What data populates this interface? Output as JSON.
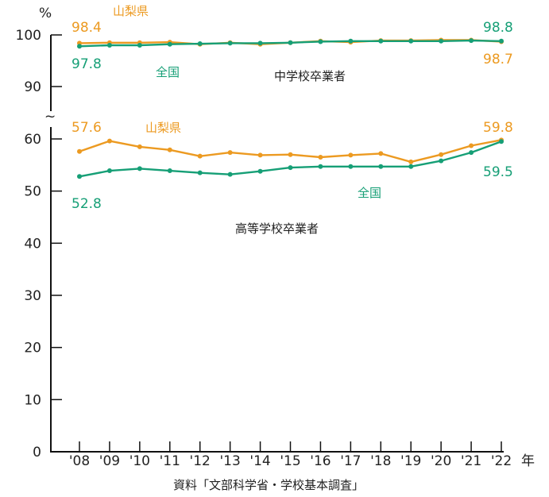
{
  "chart_data": {
    "type": "line",
    "unit_label": "%",
    "x_unit": "年",
    "source": "資料「文部科学省・学校基本調査」",
    "x_categories": [
      "'08",
      "'09",
      "'10",
      "'11",
      "'12",
      "'13",
      "'14",
      "'15",
      "'16",
      "'17",
      "'18",
      "'19",
      "'20",
      "'21",
      "'22"
    ],
    "y_ticks_lower": [
      0,
      10,
      20,
      30,
      40,
      50,
      60
    ],
    "y_ticks_upper": [
      90,
      100
    ],
    "axis_break": "~",
    "colors": {
      "yamanashi": "#ec9a21",
      "national": "#169f76",
      "axis": "#111111"
    },
    "panels": {
      "junior_high": {
        "group_label": "中学校卒業者",
        "series": [
          {
            "name": "山梨県",
            "values": [
              98.4,
              98.5,
              98.5,
              98.6,
              98.2,
              98.5,
              98.2,
              98.5,
              98.8,
              98.6,
              98.9,
              98.9,
              99.0,
              99.0,
              98.7
            ]
          },
          {
            "name": "全国",
            "values": [
              97.8,
              98.0,
              98.0,
              98.2,
              98.3,
              98.4,
              98.4,
              98.5,
              98.7,
              98.8,
              98.8,
              98.8,
              98.8,
              98.9,
              98.8
            ]
          }
        ],
        "first_labels": {
          "yamanashi": "98.4",
          "national": "97.8"
        },
        "last_labels": {
          "yamanashi": "98.7",
          "national": "98.8"
        }
      },
      "high_school": {
        "group_label": "高等学校卒業者",
        "series": [
          {
            "name": "山梨県",
            "values": [
              57.6,
              59.6,
              58.5,
              57.9,
              56.7,
              57.4,
              56.9,
              57.0,
              56.5,
              56.9,
              57.2,
              55.6,
              57.0,
              58.7,
              59.8
            ]
          },
          {
            "name": "全国",
            "values": [
              52.8,
              53.9,
              54.3,
              53.9,
              53.5,
              53.2,
              53.8,
              54.5,
              54.7,
              54.7,
              54.7,
              54.7,
              55.8,
              57.4,
              59.5
            ]
          }
        ],
        "first_labels": {
          "yamanashi": "57.6",
          "national": "52.8"
        },
        "last_labels": {
          "yamanashi": "59.8",
          "national": "59.5"
        }
      }
    }
  }
}
